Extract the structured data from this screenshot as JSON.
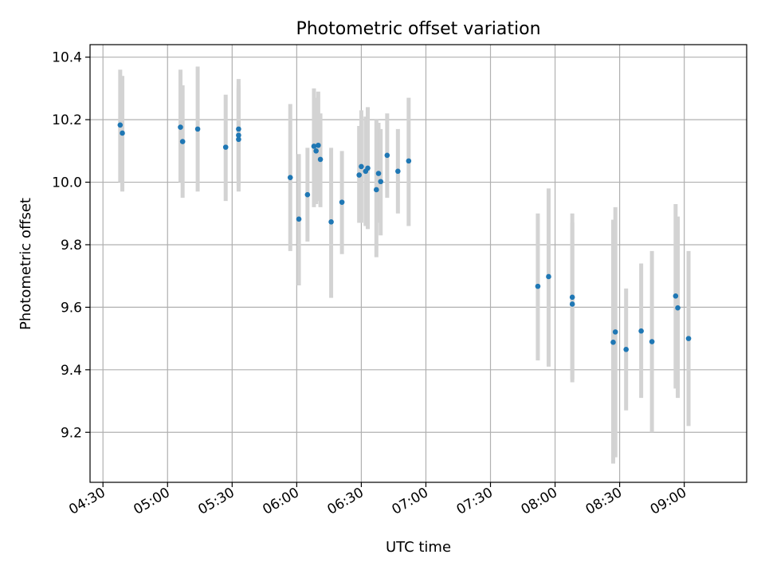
{
  "chart_data": {
    "type": "scatter",
    "title": "Photometric offset variation",
    "xlabel": "UTC time",
    "ylabel": "Photometric offset",
    "xlim": [
      "04:24",
      "09:29"
    ],
    "ylim": [
      9.04,
      10.44
    ],
    "grid": true,
    "x_ticks": [
      "04:30",
      "05:00",
      "05:30",
      "06:00",
      "06:30",
      "07:00",
      "07:30",
      "08:00",
      "08:30",
      "09:00"
    ],
    "y_ticks": [
      "9.2",
      "9.4",
      "9.6",
      "9.8",
      "10.0",
      "10.2",
      "10.4"
    ],
    "colors": {
      "marker": "#1f77b4",
      "errorbar": "#d3d3d3",
      "grid": "#b0b0b0"
    },
    "series": [
      {
        "points": [
          {
            "t": "04:38",
            "y": 10.183,
            "lo": 10.0,
            "hi": 10.36
          },
          {
            "t": "04:39",
            "y": 10.157,
            "lo": 9.97,
            "hi": 10.34
          },
          {
            "t": "05:06",
            "y": 10.176,
            "lo": 10.0,
            "hi": 10.36
          },
          {
            "t": "05:07",
            "y": 10.13,
            "lo": 9.95,
            "hi": 10.31
          },
          {
            "t": "05:14",
            "y": 10.17,
            "lo": 9.97,
            "hi": 10.37
          },
          {
            "t": "05:27",
            "y": 10.112,
            "lo": 9.94,
            "hi": 10.28
          },
          {
            "t": "05:33",
            "y": 10.17,
            "lo": 10.01,
            "hi": 10.33
          },
          {
            "t": "05:33",
            "y": 10.15,
            "lo": 9.99,
            "hi": 10.31
          },
          {
            "t": "05:33",
            "y": 10.137,
            "lo": 9.97,
            "hi": 10.3
          },
          {
            "t": "05:57",
            "y": 10.015,
            "lo": 9.78,
            "hi": 10.25
          },
          {
            "t": "06:01",
            "y": 9.882,
            "lo": 9.67,
            "hi": 10.09
          },
          {
            "t": "06:05",
            "y": 9.96,
            "lo": 9.81,
            "hi": 10.11
          },
          {
            "t": "06:08",
            "y": 10.115,
            "lo": 9.92,
            "hi": 10.3
          },
          {
            "t": "06:09",
            "y": 10.1,
            "lo": 9.93,
            "hi": 10.27
          },
          {
            "t": "06:10",
            "y": 10.118,
            "lo": 9.94,
            "hi": 10.29
          },
          {
            "t": "06:11",
            "y": 10.073,
            "lo": 9.92,
            "hi": 10.22
          },
          {
            "t": "06:16",
            "y": 9.873,
            "lo": 9.63,
            "hi": 10.11
          },
          {
            "t": "06:21",
            "y": 9.936,
            "lo": 9.77,
            "hi": 10.1
          },
          {
            "t": "06:29",
            "y": 10.023,
            "lo": 9.87,
            "hi": 10.18
          },
          {
            "t": "06:30",
            "y": 10.05,
            "lo": 9.87,
            "hi": 10.23
          },
          {
            "t": "06:32",
            "y": 10.035,
            "lo": 9.86,
            "hi": 10.21
          },
          {
            "t": "06:33",
            "y": 10.045,
            "lo": 9.85,
            "hi": 10.24
          },
          {
            "t": "06:37",
            "y": 9.976,
            "lo": 9.76,
            "hi": 10.2
          },
          {
            "t": "06:38",
            "y": 10.028,
            "lo": 9.87,
            "hi": 10.19
          },
          {
            "t": "06:39",
            "y": 10.002,
            "lo": 9.83,
            "hi": 10.17
          },
          {
            "t": "06:42",
            "y": 10.086,
            "lo": 9.95,
            "hi": 10.22
          },
          {
            "t": "06:47",
            "y": 10.035,
            "lo": 9.9,
            "hi": 10.17
          },
          {
            "t": "06:52",
            "y": 10.068,
            "lo": 9.86,
            "hi": 10.27
          },
          {
            "t": "07:52",
            "y": 9.667,
            "lo": 9.43,
            "hi": 9.9
          },
          {
            "t": "07:57",
            "y": 9.698,
            "lo": 9.41,
            "hi": 9.98
          },
          {
            "t": "08:08",
            "y": 9.632,
            "lo": 9.37,
            "hi": 9.9
          },
          {
            "t": "08:08",
            "y": 9.61,
            "lo": 9.36,
            "hi": 9.87
          },
          {
            "t": "08:27",
            "y": 9.488,
            "lo": 9.1,
            "hi": 9.88
          },
          {
            "t": "08:28",
            "y": 9.521,
            "lo": 9.12,
            "hi": 9.92
          },
          {
            "t": "08:33",
            "y": 9.465,
            "lo": 9.27,
            "hi": 9.66
          },
          {
            "t": "08:40",
            "y": 9.524,
            "lo": 9.31,
            "hi": 9.74
          },
          {
            "t": "08:45",
            "y": 9.49,
            "lo": 9.2,
            "hi": 9.78
          },
          {
            "t": "08:56",
            "y": 9.636,
            "lo": 9.34,
            "hi": 9.93
          },
          {
            "t": "08:57",
            "y": 9.598,
            "lo": 9.31,
            "hi": 9.89
          },
          {
            "t": "09:02",
            "y": 9.5,
            "lo": 9.22,
            "hi": 9.78
          }
        ]
      }
    ]
  }
}
